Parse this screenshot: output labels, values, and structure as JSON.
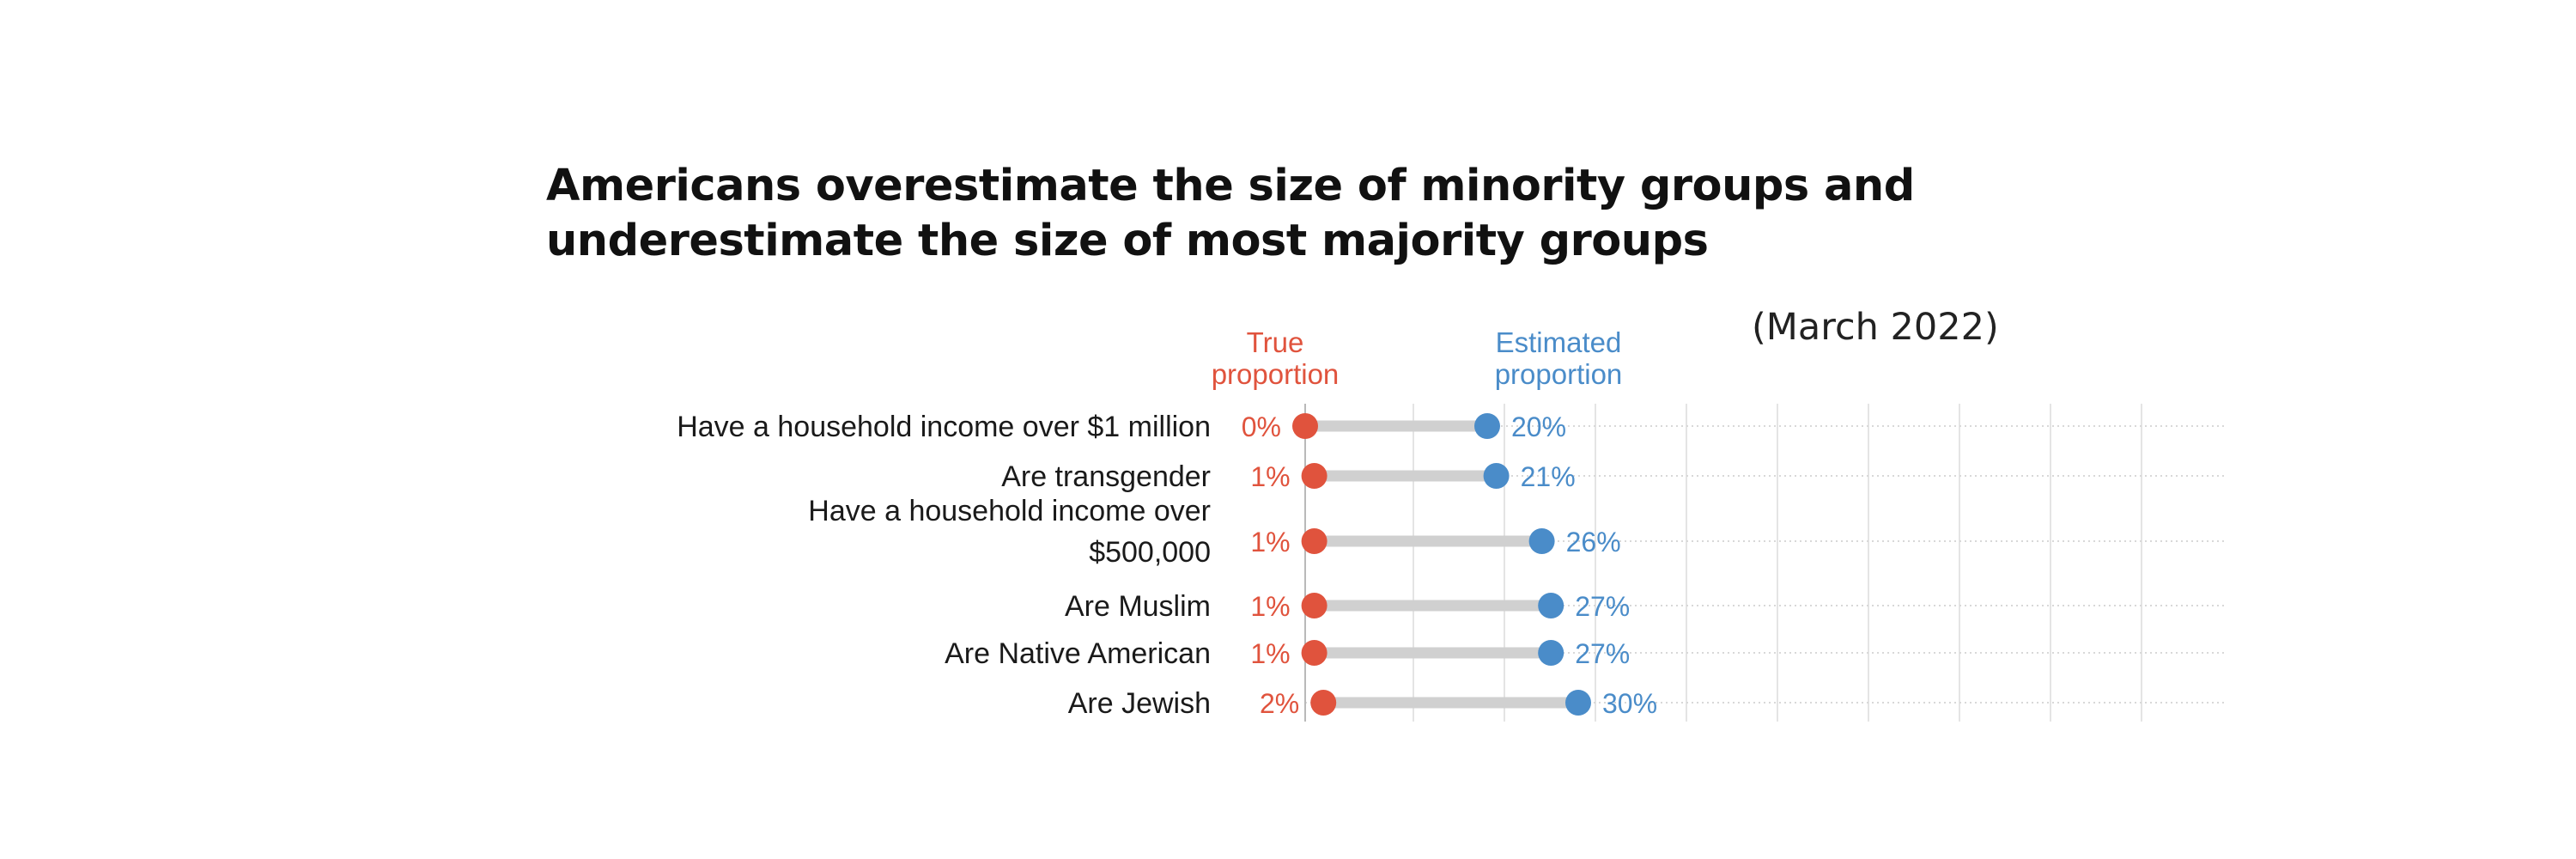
{
  "title": {
    "line1": "Americans overestimate the size of minority groups and",
    "line2": "underestimate the size of most majority groups"
  },
  "date_note": "(March 2022)",
  "colors": {
    "true": "#e0533d",
    "estimated": "#4a8cc9",
    "connector": "#d0d0d0",
    "label": "#1a1a1a"
  },
  "chart_data": {
    "type": "dumbbell",
    "title": "Americans overestimate the size of minority groups and underestimate the size of most majority groups",
    "subtitle": "(March 2022)",
    "xlim": [
      0,
      100
    ],
    "grid": true,
    "legend": [
      "True proportion",
      "Estimated proportion"
    ],
    "series": [
      {
        "name": "True proportion",
        "label_lines": [
          "True",
          "proportion"
        ]
      },
      {
        "name": "Estimated proportion",
        "label_lines": [
          "Estimated",
          "proportion"
        ]
      }
    ],
    "rows": [
      {
        "label": [
          "Have a household income over $1 million"
        ],
        "true": 0,
        "true_label": "0%",
        "estimated": 20,
        "estimated_label": "20%"
      },
      {
        "label": [
          "Are transgender"
        ],
        "true": 1,
        "true_label": "1%",
        "estimated": 21,
        "estimated_label": "21%"
      },
      {
        "label": [
          "Have a household income over",
          "$500,000"
        ],
        "true": 1,
        "true_label": "1%",
        "estimated": 26,
        "estimated_label": "26%"
      },
      {
        "label": [
          "Are Muslim"
        ],
        "true": 1,
        "true_label": "1%",
        "estimated": 27,
        "estimated_label": "27%"
      },
      {
        "label": [
          "Are Native American"
        ],
        "true": 1,
        "true_label": "1%",
        "estimated": 27,
        "estimated_label": "27%"
      },
      {
        "label": [
          "Are Jewish"
        ],
        "true": 2,
        "true_label": "2%",
        "estimated": 30,
        "estimated_label": "30%"
      }
    ]
  }
}
